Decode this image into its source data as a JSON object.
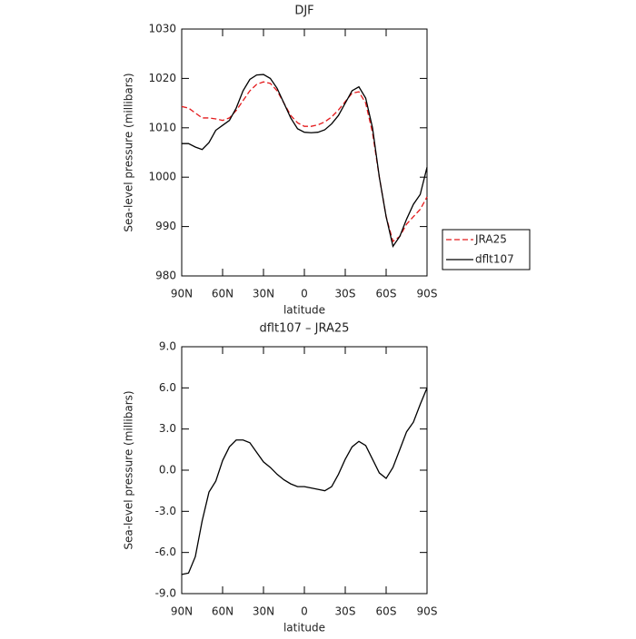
{
  "chart_data": [
    {
      "type": "line",
      "title": "DJF",
      "xlabel": "latitude",
      "ylabel": "Sea-level pressure (millibars)",
      "x": [
        90,
        85,
        80,
        75,
        70,
        65,
        60,
        55,
        50,
        45,
        40,
        35,
        30,
        25,
        20,
        15,
        10,
        5,
        0,
        -5,
        -10,
        -15,
        -20,
        -25,
        -30,
        -35,
        -40,
        -45,
        -50,
        -55,
        -60,
        -65,
        -70,
        -75,
        -80,
        -85,
        -90
      ],
      "xlim": [
        90,
        -90
      ],
      "xticks": [
        {
          "value": 90,
          "label": "90N"
        },
        {
          "value": 60,
          "label": "60N"
        },
        {
          "value": 30,
          "label": "30N"
        },
        0,
        {
          "value": -30,
          "label": "30S"
        },
        {
          "value": -60,
          "label": "60S"
        },
        {
          "value": -90,
          "label": "90S"
        }
      ],
      "ylim": [
        980,
        1030
      ],
      "yticks": [
        980,
        990,
        1000,
        1010,
        1020,
        1030
      ],
      "legend": "right",
      "series": [
        {
          "name": "JRA25",
          "color": "#e41a1c",
          "dash": true,
          "values": [
            1014.3,
            1014,
            1013,
            1012,
            1012,
            1011.8,
            1011.5,
            1012,
            1013.5,
            1015.5,
            1017.5,
            1018.8,
            1019.3,
            1019,
            1017.5,
            1015,
            1012.5,
            1011,
            1010.3,
            1010.3,
            1010.6,
            1011.2,
            1012.2,
            1013.6,
            1015.3,
            1017,
            1017.3,
            1015,
            1009,
            1000,
            992,
            987,
            988,
            990.5,
            992,
            993.5,
            996
          ]
        },
        {
          "name": "dflt107",
          "color": "#000000",
          "dash": false,
          "values": [
            1006.8,
            1006.8,
            1006.1,
            1005.6,
            1007,
            1009.5,
            1010.5,
            1011.5,
            1014,
            1017.5,
            1019.8,
            1020.7,
            1020.8,
            1020,
            1018,
            1015,
            1012,
            1009.8,
            1009.1,
            1009,
            1009.1,
            1009.6,
            1010.8,
            1012.5,
            1015,
            1017.5,
            1018.3,
            1016,
            1010,
            1000,
            992,
            986,
            988,
            991.5,
            994.5,
            996.5,
            1002
          ]
        }
      ]
    },
    {
      "type": "line",
      "title": "dflt107 – JRA25",
      "xlabel": "latitude",
      "ylabel": "Sea-level pressure (millibars)",
      "x": [
        90,
        85,
        80,
        75,
        70,
        65,
        60,
        55,
        50,
        45,
        40,
        35,
        30,
        25,
        20,
        15,
        10,
        5,
        0,
        -5,
        -10,
        -15,
        -20,
        -25,
        -30,
        -35,
        -40,
        -45,
        -50,
        -55,
        -60,
        -65,
        -70,
        -75,
        -80,
        -85,
        -90
      ],
      "xlim": [
        90,
        -90
      ],
      "xticks": [
        {
          "value": 90,
          "label": "90N"
        },
        {
          "value": 60,
          "label": "60N"
        },
        {
          "value": 30,
          "label": "30N"
        },
        0,
        {
          "value": -30,
          "label": "30S"
        },
        {
          "value": -60,
          "label": "60S"
        },
        {
          "value": -90,
          "label": "90S"
        }
      ],
      "ylim": [
        -9,
        9
      ],
      "yticks": [
        {
          "value": -9,
          "label": "-9.0"
        },
        {
          "value": -6,
          "label": "-6.0"
        },
        {
          "value": -3,
          "label": "-3.0"
        },
        {
          "value": 0,
          "label": "0.0"
        },
        {
          "value": 3,
          "label": "3.0"
        },
        {
          "value": 6,
          "label": "6.0"
        },
        {
          "value": 9,
          "label": "9.0"
        }
      ],
      "series": [
        {
          "color": "#000000",
          "dash": false,
          "values": [
            -7.6,
            -7.5,
            -6.3,
            -3.7,
            -1.6,
            -0.8,
            0.7,
            1.7,
            2.2,
            2.2,
            2.0,
            1.3,
            0.6,
            0.2,
            -0.3,
            -0.7,
            -1.0,
            -1.2,
            -1.2,
            -1.3,
            -1.4,
            -1.5,
            -1.2,
            -0.3,
            0.8,
            1.7,
            2.1,
            1.8,
            0.8,
            -0.2,
            -0.6,
            0.2,
            1.5,
            2.8,
            3.5,
            4.8,
            6.0
          ]
        }
      ]
    }
  ]
}
